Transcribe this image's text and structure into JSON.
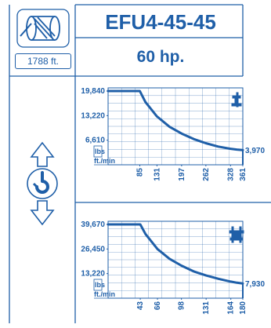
{
  "header": {
    "model": "EFU4-45-45",
    "power": "60 hp.",
    "rope_length": "1788 ft."
  },
  "icons": {
    "drum": "cable-drum-icon",
    "hook": "hook-up-down-icon",
    "single_line": "single-line-reeving-icon",
    "double_line": "double-line-reeving-icon"
  },
  "colors": {
    "primary": "#1f5fa8",
    "grid": "#1f5fa8",
    "background": "#ffffff"
  },
  "chart_data": [
    {
      "type": "line",
      "x_unit": "ft./min",
      "y_unit": "lbs",
      "y_ticks": [
        19840,
        13220,
        6610
      ],
      "y_tick_labels": [
        "19,840",
        "13,220",
        "6,610"
      ],
      "x_ticks": [
        85,
        131,
        197,
        262,
        328,
        361
      ],
      "xlim": [
        0,
        361
      ],
      "ylim": [
        0,
        19840
      ],
      "grid": true,
      "x": [
        0,
        85,
        100,
        131,
        165,
        197,
        230,
        262,
        295,
        328,
        345,
        361
      ],
      "y": [
        19840,
        19840,
        16900,
        13000,
        10200,
        8400,
        6900,
        5800,
        4900,
        4300,
        4100,
        3970
      ],
      "end_label": "3,970"
    },
    {
      "type": "line",
      "x_unit": "ft./min",
      "y_unit": "lbs",
      "y_ticks": [
        39670,
        26450,
        13220
      ],
      "y_tick_labels": [
        "39,670",
        "26,450",
        "13,220"
      ],
      "x_ticks": [
        43,
        66,
        98,
        131,
        164,
        180
      ],
      "xlim": [
        0,
        180
      ],
      "ylim": [
        0,
        39670
      ],
      "grid": true,
      "x": [
        0,
        43,
        50,
        66,
        82,
        98,
        115,
        131,
        148,
        164,
        172,
        180
      ],
      "y": [
        39670,
        39670,
        34500,
        26400,
        21200,
        17500,
        14300,
        12200,
        10400,
        8900,
        8300,
        7930
      ],
      "end_label": "7,930"
    }
  ]
}
